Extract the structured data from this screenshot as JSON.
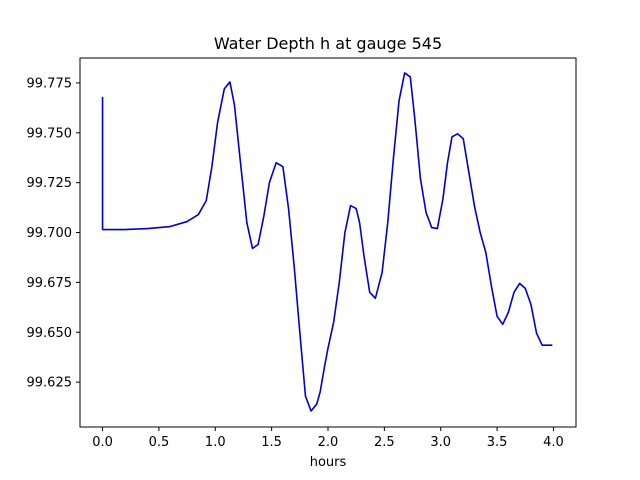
{
  "chart_data": {
    "type": "line",
    "title": "Water Depth h at gauge 545",
    "xlabel": "hours",
    "ylabel": "",
    "xlim": [
      -0.2,
      4.2
    ],
    "ylim": [
      99.6025,
      99.7875
    ],
    "grid": false,
    "colors": {
      "line": "#0000cc",
      "axes": "#000000",
      "background": "#ffffff"
    },
    "xticks": [
      {
        "value": 0.0,
        "label": "0.0"
      },
      {
        "value": 0.5,
        "label": "0.5"
      },
      {
        "value": 1.0,
        "label": "1.0"
      },
      {
        "value": 1.5,
        "label": "1.5"
      },
      {
        "value": 2.0,
        "label": "2.0"
      },
      {
        "value": 2.5,
        "label": "2.5"
      },
      {
        "value": 3.0,
        "label": "3.0"
      },
      {
        "value": 3.5,
        "label": "3.5"
      },
      {
        "value": 4.0,
        "label": "4.0"
      }
    ],
    "yticks": [
      {
        "value": 99.625,
        "label": "99.625"
      },
      {
        "value": 99.65,
        "label": "99.650"
      },
      {
        "value": 99.675,
        "label": "99.675"
      },
      {
        "value": 99.7,
        "label": "99.700"
      },
      {
        "value": 99.725,
        "label": "99.725"
      },
      {
        "value": 99.75,
        "label": "99.750"
      },
      {
        "value": 99.775,
        "label": "99.775"
      }
    ],
    "series": [
      {
        "x": [
          0.0,
          0.0,
          0.0,
          0.2,
          0.4,
          0.6,
          0.75,
          0.85,
          0.92,
          0.97,
          1.02,
          1.08,
          1.13,
          1.17,
          1.22,
          1.28,
          1.33,
          1.38,
          1.43,
          1.48,
          1.54,
          1.6,
          1.65,
          1.7,
          1.75,
          1.8,
          1.85,
          1.9,
          1.93,
          1.97,
          2.0,
          2.05,
          2.1,
          2.15,
          2.2,
          2.25,
          2.28,
          2.32,
          2.37,
          2.42,
          2.48,
          2.53,
          2.58,
          2.63,
          2.68,
          2.73,
          2.77,
          2.82,
          2.87,
          2.92,
          2.97,
          3.02,
          3.06,
          3.1,
          3.15,
          3.2,
          3.25,
          3.3,
          3.35,
          3.4,
          3.45,
          3.5,
          3.55,
          3.6,
          3.65,
          3.7,
          3.75,
          3.8,
          3.85,
          3.9,
          3.95,
          3.99
        ],
        "y": [
          99.768,
          99.725,
          99.7015,
          99.7015,
          99.702,
          99.703,
          99.7055,
          99.709,
          99.716,
          99.733,
          99.755,
          99.772,
          99.7755,
          99.764,
          99.737,
          99.705,
          99.692,
          99.694,
          99.708,
          99.725,
          99.735,
          99.733,
          99.712,
          99.683,
          99.65,
          99.618,
          99.6105,
          99.614,
          99.62,
          99.633,
          99.642,
          99.655,
          99.675,
          99.7,
          99.7135,
          99.712,
          99.705,
          99.688,
          99.67,
          99.667,
          99.68,
          99.705,
          99.737,
          99.766,
          99.78,
          99.778,
          99.757,
          99.727,
          99.71,
          99.7025,
          99.702,
          99.717,
          99.735,
          99.748,
          99.7495,
          99.747,
          99.73,
          99.713,
          99.7,
          99.69,
          99.673,
          99.658,
          99.654,
          99.66,
          99.67,
          99.6745,
          99.672,
          99.664,
          99.6495,
          99.6435,
          99.6435,
          99.6435
        ]
      }
    ]
  }
}
